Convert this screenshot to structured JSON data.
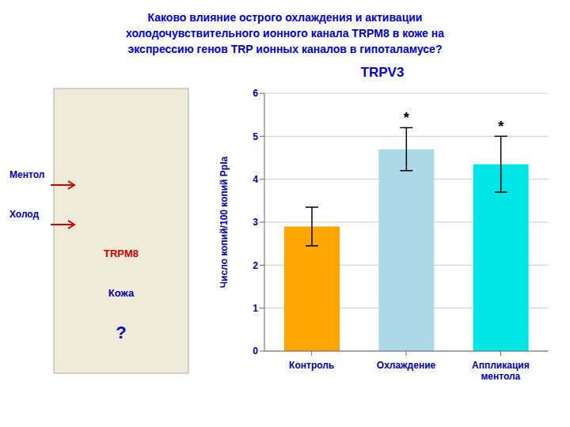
{
  "chart_data": {
    "type": "bar",
    "title": "TRPV3",
    "subtitle": "Каково влияние острого охлаждения и активации\nхолодочувствительного ионного канала TRPM8 в коже на\nэкспрессию генов TRP ионных каналов в гипоталамусе?",
    "categories": [
      "Контроль",
      "Охлаждение",
      "Аппликация\nментола"
    ],
    "values": [
      2.9,
      4.7,
      4.35
    ],
    "errors": [
      0.45,
      0.5,
      0.65
    ],
    "significance": [
      null,
      "*",
      "*"
    ],
    "colors": [
      "#FFA500",
      "#ADD8E6",
      "#00E5E5"
    ],
    "ylabel": "Число копий/100 копий Ppla",
    "ylim": [
      0,
      6
    ],
    "yticks": [
      0,
      1,
      2,
      3,
      4,
      5,
      6
    ],
    "grid": true,
    "annotations": [
      "Ментол",
      "Холод",
      "TRPM8",
      "Кожа",
      "?"
    ]
  }
}
